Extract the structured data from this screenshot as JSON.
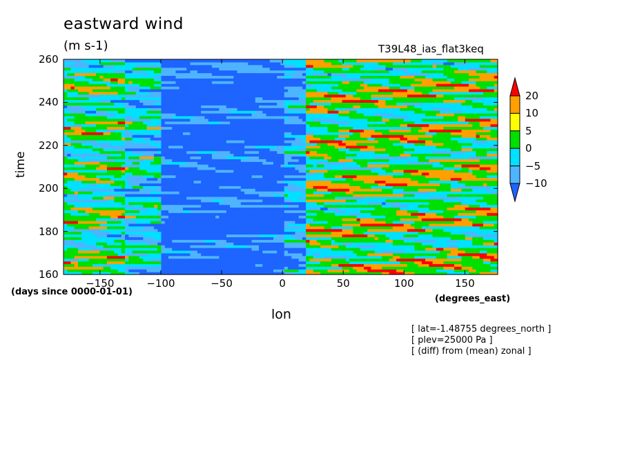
{
  "chart_data": {
    "type": "heatmap",
    "title": "eastward wind",
    "units": "(m s-1)",
    "dataset": "T39L48_ias_flat3keq",
    "xlabel": "lon",
    "xunits": "(degrees_east)",
    "ylabel": "time",
    "yunits": "(days since 0000-01-01)",
    "xlim": [
      -180,
      177
    ],
    "ylim": [
      160,
      260
    ],
    "xticks": [
      -150,
      -100,
      -50,
      0,
      50,
      100,
      150
    ],
    "yticks": [
      160,
      180,
      200,
      220,
      240,
      260
    ],
    "legend_placement": "right",
    "colorbar": {
      "levels": [
        "-10",
        "-5",
        "0",
        "5",
        "10",
        "20"
      ],
      "colors": [
        "#1e64ff",
        "#00c8ff",
        "#00e000",
        "#ffff00",
        "#ffa000",
        "#ff0000"
      ],
      "below_color": "#1e64ff",
      "above_color": "#ff0000"
    },
    "annotations": [
      "[ lat=-1.48755 degrees_north ]",
      "[ plev=25000 Pa ]",
      "[ (diff) from (mean) zonal ]"
    ]
  }
}
